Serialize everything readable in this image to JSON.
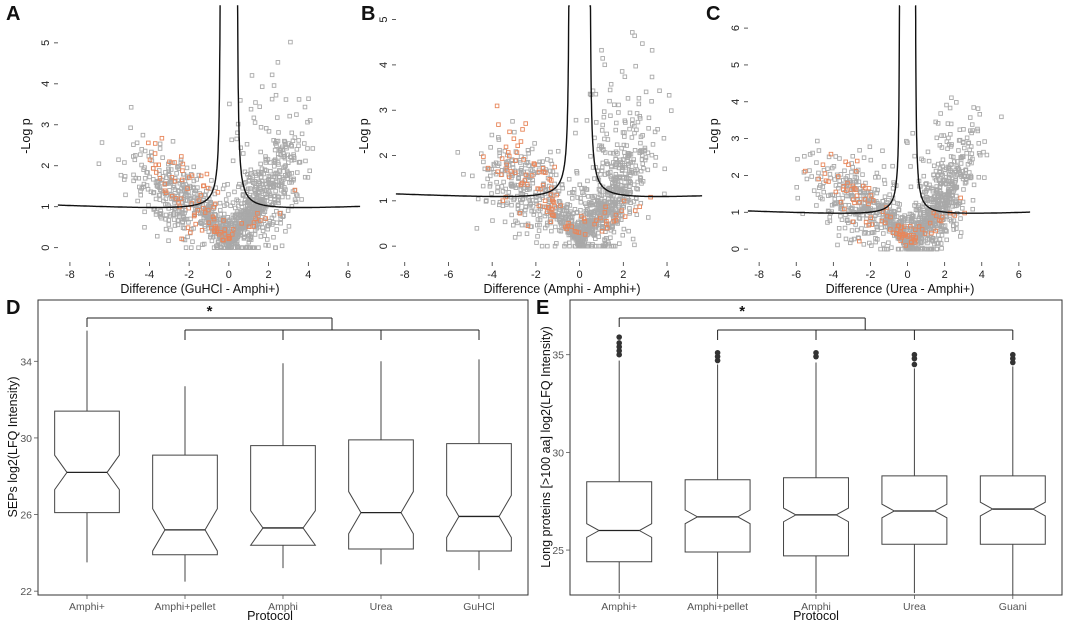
{
  "panel_labels": [
    "A",
    "B",
    "C",
    "D",
    "E"
  ],
  "colors": {
    "grey_points": "#a9a9a9",
    "orange_points": "#e8865a",
    "curve": "#111111",
    "box_line": "#444444",
    "outlier": "#333333",
    "frame": "#333333"
  },
  "chart_data": [
    {
      "type": "scatter",
      "panel": "A",
      "xlabel": "Difference (GuHCl - Amphi+)",
      "ylabel": "-Log p",
      "xlim": [
        -8.6,
        6.6
      ],
      "ylim": [
        -0.35,
        5.9
      ],
      "xticks": [
        -8,
        -6,
        -4,
        -2,
        0,
        2,
        4,
        6
      ],
      "yticks": [
        0,
        1,
        2,
        3,
        4,
        5
      ],
      "threshold": {
        "s0": 0.22,
        "c": 0.84,
        "dx": 0.4
      },
      "seed": 11,
      "n_grey": 1100,
      "n_orange": 85,
      "spread_left": 1.3,
      "spread_right": 1.05,
      "right_mean": 1.6,
      "left_mean": -2.6
    },
    {
      "type": "scatter",
      "panel": "B",
      "xlabel": "Difference (Amphi - Amphi+)",
      "ylabel": "-Log p",
      "xlim": [
        -8.4,
        5.6
      ],
      "ylim": [
        -0.35,
        5.3
      ],
      "xticks": [
        -8,
        -6,
        -4,
        -2,
        0,
        2,
        4
      ],
      "yticks": [
        0,
        1,
        2,
        3,
        4,
        5
      ],
      "threshold": {
        "s0": 0.2,
        "c": 0.96,
        "dx": 0.45
      },
      "seed": 23,
      "n_grey": 1050,
      "n_orange": 95,
      "spread_left": 1.2,
      "spread_right": 0.95,
      "right_mean": 1.5,
      "left_mean": -2.4
    },
    {
      "type": "scatter",
      "panel": "C",
      "xlabel": "Difference (Urea - Amphi+)",
      "ylabel": "-Log p",
      "xlim": [
        -8.6,
        6.6
      ],
      "ylim": [
        -0.35,
        6.6
      ],
      "xticks": [
        -8,
        -6,
        -4,
        -2,
        0,
        2,
        4,
        6
      ],
      "yticks": [
        0,
        1,
        2,
        3,
        4,
        5,
        6
      ],
      "threshold": {
        "s0": 0.2,
        "c": 0.84,
        "dx": 0.4
      },
      "seed": 37,
      "n_grey": 1100,
      "n_orange": 90,
      "spread_left": 1.35,
      "spread_right": 1.0,
      "right_mean": 1.7,
      "left_mean": -2.8
    },
    {
      "type": "box",
      "panel": "D",
      "xlabel": "Protocol",
      "ylabel": "SEPs log2(LFQ Intensity)",
      "ylim": [
        21.8,
        37.2
      ],
      "yticks": [
        22,
        26,
        30,
        34
      ],
      "categories": [
        "Amphi+",
        "Amphi+pellet",
        "Amphi",
        "Urea",
        "GuHCl"
      ],
      "boxes": [
        {
          "low": 23.5,
          "q1": 26.1,
          "median": 28.2,
          "q3": 31.4,
          "high": 35.6,
          "notch": 0.9,
          "outliers": []
        },
        {
          "low": 22.5,
          "q1": 23.9,
          "median": 25.2,
          "q3": 29.1,
          "high": 32.7,
          "notch": 1.1,
          "outliers": []
        },
        {
          "low": 23.2,
          "q1": 24.4,
          "median": 25.3,
          "q3": 29.6,
          "high": 33.9,
          "notch": 0.9,
          "outliers": []
        },
        {
          "low": 23.4,
          "q1": 24.2,
          "median": 26.1,
          "q3": 29.9,
          "high": 34.0,
          "notch": 1.1,
          "outliers": []
        },
        {
          "low": 23.1,
          "q1": 24.1,
          "median": 25.9,
          "q3": 29.7,
          "high": 34.1,
          "notch": 1.1,
          "outliers": []
        }
      ],
      "significance": {
        "label": "*",
        "from": 0,
        "to": [
          1,
          2,
          3,
          4
        ]
      }
    },
    {
      "type": "box",
      "panel": "E",
      "xlabel": "Protocol",
      "ylabel": "Long proteins [>100 aa] log2(LFQ Intensity)",
      "ylim": [
        22.7,
        37.8
      ],
      "yticks": [
        25,
        30,
        35
      ],
      "categories": [
        "Amphi+",
        "Amphi+pellet",
        "Amphi",
        "Urea",
        "Guani"
      ],
      "boxes": [
        {
          "low": 22.8,
          "q1": 24.4,
          "median": 26.0,
          "q3": 28.5,
          "high": 34.7,
          "notch": 0.35,
          "outliers": [
            35.0,
            35.2,
            35.4,
            35.6,
            35.9
          ]
        },
        {
          "low": 22.7,
          "q1": 24.9,
          "median": 26.7,
          "q3": 28.6,
          "high": 34.5,
          "notch": 0.35,
          "outliers": [
            34.7,
            34.9,
            35.1
          ]
        },
        {
          "low": 22.8,
          "q1": 24.7,
          "median": 26.8,
          "q3": 28.7,
          "high": 34.6,
          "notch": 0.35,
          "outliers": [
            34.9,
            35.1
          ]
        },
        {
          "low": 22.8,
          "q1": 25.3,
          "median": 27.0,
          "q3": 28.8,
          "high": 34.3,
          "notch": 0.35,
          "outliers": [
            34.5,
            34.8,
            35.0
          ]
        },
        {
          "low": 22.7,
          "q1": 25.3,
          "median": 27.1,
          "q3": 28.8,
          "high": 34.4,
          "notch": 0.35,
          "outliers": [
            34.6,
            34.8,
            35.0
          ]
        }
      ],
      "significance": {
        "label": "*",
        "from": 0,
        "to": [
          1,
          2,
          3,
          4
        ]
      }
    }
  ]
}
